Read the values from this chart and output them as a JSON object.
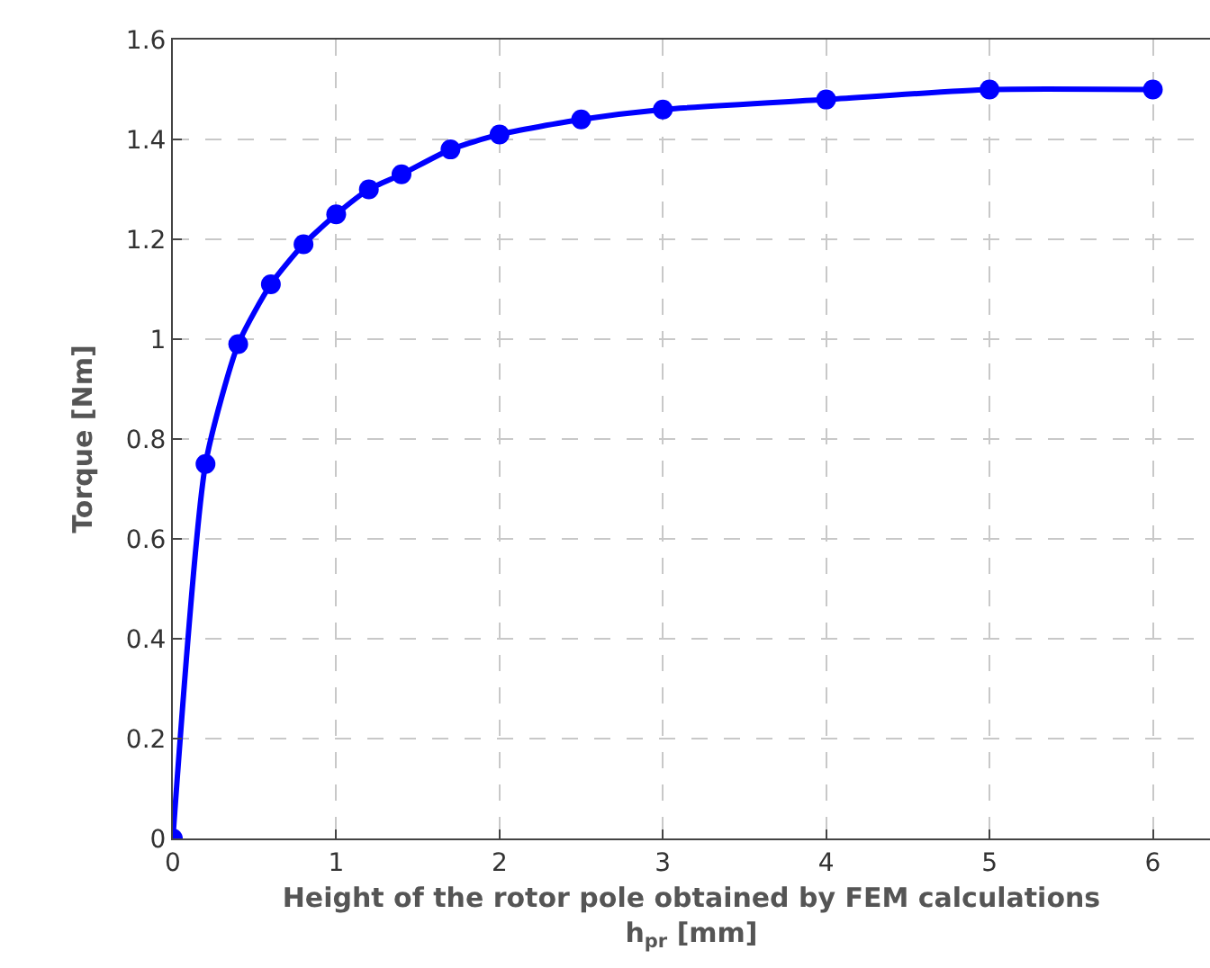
{
  "chart_data": {
    "type": "line",
    "xlabel": "Height of the rotor pole obtained by FEM calculations\nh$_{pr}$ [mm]",
    "ylabel": "Torque [Nm]",
    "x": [
      0,
      0.2,
      0.4,
      0.6,
      0.8,
      1,
      1.2,
      1.4,
      1.7,
      2,
      2.5,
      3,
      4,
      5,
      6
    ],
    "series": [
      {
        "color": "#0000ff",
        "values": [
          0,
          0.75,
          0.99,
          1.11,
          1.19,
          1.25,
          1.3,
          1.33,
          1.38,
          1.41,
          1.44,
          1.46,
          1.48,
          1.5,
          1.5
        ]
      }
    ],
    "xlim": [
      0,
      6.35
    ],
    "xticks": [
      0,
      1,
      2,
      3,
      4,
      5,
      6
    ],
    "ylim": [
      0,
      1.6
    ],
    "yticks": [
      0,
      {
        "value": 0.2,
        "label": "0.2"
      },
      {
        "value": 0.4,
        "label": "0.4"
      },
      {
        "value": 0.6,
        "label": "0.6"
      },
      {
        "value": 0.8,
        "label": "0.8"
      },
      1,
      {
        "value": 1.2,
        "label": "1.2"
      },
      {
        "value": 1.4,
        "label": "1.4"
      },
      {
        "value": 1.6,
        "label": "1.6"
      }
    ],
    "grid": true,
    "marker": "circle",
    "line_style": "solid"
  }
}
